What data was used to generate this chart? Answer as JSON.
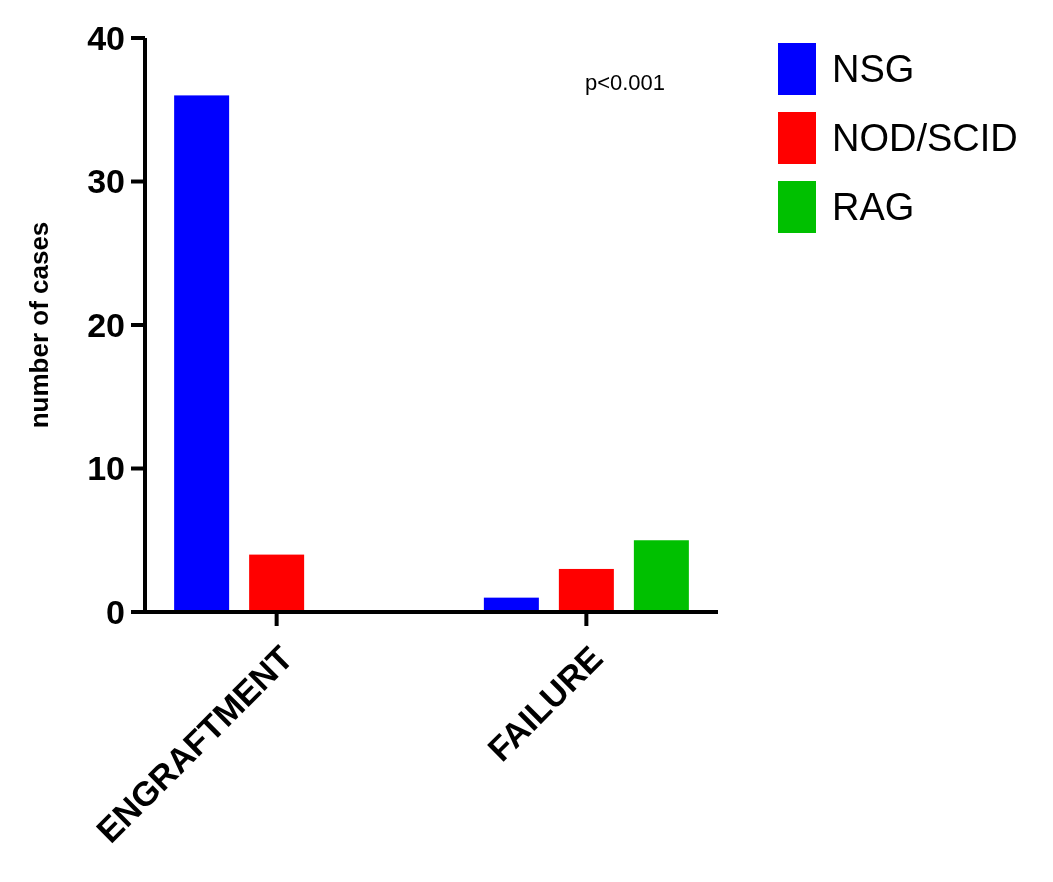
{
  "chart_data": {
    "type": "bar",
    "ylabel": "number of cases",
    "categories": [
      "ENGRAFTMENT",
      "FAILURE"
    ],
    "series": [
      {
        "name": "NSG",
        "color": "#0000ff",
        "values": [
          36,
          1
        ]
      },
      {
        "name": "NOD/SCID",
        "color": "#ff0000",
        "values": [
          4,
          3
        ]
      },
      {
        "name": "RAG",
        "color": "#00c000",
        "values": [
          0,
          5
        ]
      }
    ],
    "ylim": [
      0,
      40
    ],
    "yticks": [
      0,
      10,
      20,
      30,
      40
    ],
    "legend": "top right",
    "annotations": [
      "p<0.001"
    ]
  }
}
